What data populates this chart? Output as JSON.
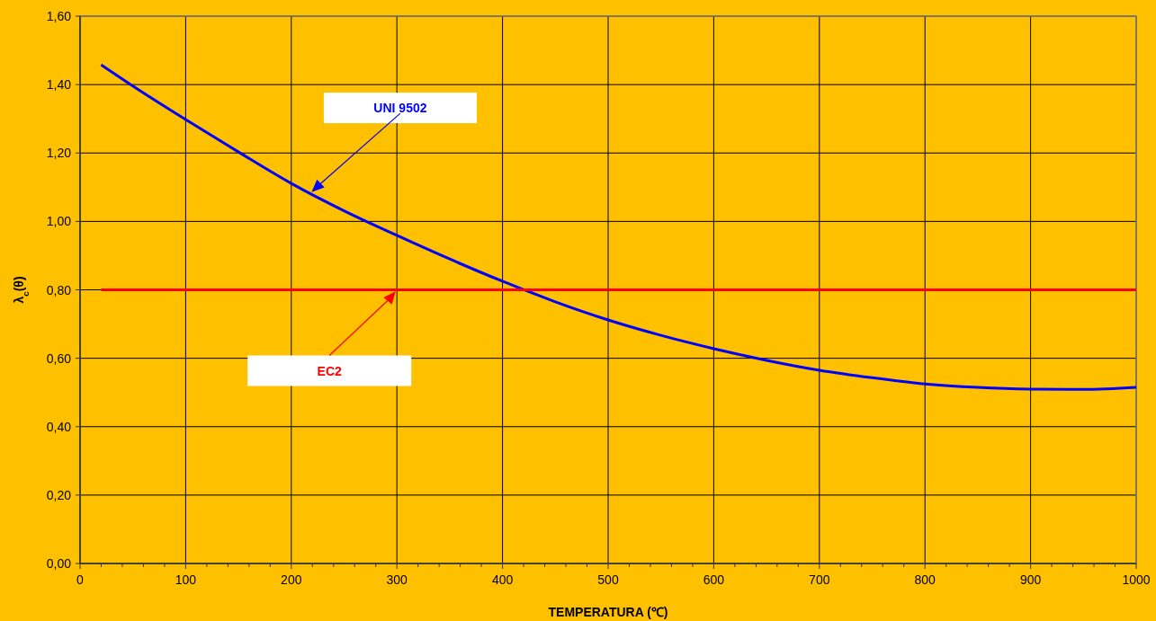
{
  "chart_data": {
    "type": "line",
    "xlabel": "TEMPERATURA (℃)",
    "ylabel": "λ$_{c}$(θ)",
    "xlim": [
      0,
      1000
    ],
    "xticks": [
      0,
      {
        "value": 20,
        "label": null
      },
      {
        "value": 40,
        "label": null
      },
      {
        "value": 60,
        "label": null
      },
      {
        "value": 80,
        "label": null
      },
      100,
      {
        "value": 120,
        "label": null
      },
      {
        "value": 140,
        "label": null
      },
      {
        "value": 160,
        "label": null
      },
      {
        "value": 180,
        "label": null
      },
      200,
      {
        "value": 220,
        "label": null
      },
      {
        "value": 240,
        "label": null
      },
      {
        "value": 260,
        "label": null
      },
      {
        "value": 280,
        "label": null
      },
      300,
      {
        "value": 320,
        "label": null
      },
      {
        "value": 340,
        "label": null
      },
      {
        "value": 360,
        "label": null
      },
      {
        "value": 380,
        "label": null
      },
      400,
      {
        "value": 420,
        "label": null
      },
      {
        "value": 440,
        "label": null
      },
      {
        "value": 460,
        "label": null
      },
      {
        "value": 480,
        "label": null
      },
      500,
      {
        "value": 520,
        "label": null
      },
      {
        "value": 540,
        "label": null
      },
      {
        "value": 560,
        "label": null
      },
      {
        "value": 580,
        "label": null
      },
      600,
      {
        "value": 620,
        "label": null
      },
      {
        "value": 640,
        "label": null
      },
      {
        "value": 660,
        "label": null
      },
      {
        "value": 680,
        "label": null
      },
      700,
      {
        "value": 720,
        "label": null
      },
      {
        "value": 740,
        "label": null
      },
      {
        "value": 760,
        "label": null
      },
      {
        "value": 780,
        "label": null
      },
      800,
      {
        "value": 820,
        "label": null
      },
      {
        "value": 840,
        "label": null
      },
      {
        "value": 860,
        "label": null
      },
      {
        "value": 880,
        "label": null
      },
      900,
      {
        "value": 920,
        "label": null
      },
      {
        "value": 940,
        "label": null
      },
      {
        "value": 960,
        "label": null
      },
      {
        "value": 980,
        "label": null
      },
      1000
    ],
    "ylim": [
      0,
      1.6
    ],
    "yticks": [
      {
        "value": 0,
        "label": "0,00"
      },
      {
        "value": 0.2,
        "label": "0,20"
      },
      {
        "value": 0.4,
        "label": "0,40"
      },
      {
        "value": 0.6,
        "label": "0,60"
      },
      {
        "value": 0.8,
        "label": "0,80"
      },
      {
        "value": 1.0,
        "label": "1,00"
      },
      {
        "value": 1.2,
        "label": "1,20"
      },
      {
        "value": 1.4,
        "label": "1,40"
      },
      {
        "value": 1.6,
        "label": "1,60"
      }
    ],
    "grid": true,
    "marker": "none",
    "line_style": "solid",
    "series": [
      {
        "name": "UNI 9502",
        "color": "#0000ff",
        "x": [
          20,
          50,
          100,
          150,
          200,
          250,
          300,
          350,
          400,
          450,
          500,
          550,
          600,
          650,
          700,
          750,
          800,
          850,
          900,
          950,
          1000
        ],
        "values": [
          1.458,
          1.396,
          1.298,
          1.203,
          1.111,
          1.031,
          0.959,
          0.89,
          0.825,
          0.765,
          0.712,
          0.667,
          0.628,
          0.594,
          0.565,
          0.543,
          0.525,
          0.515,
          0.51,
          0.509,
          0.515
        ]
      },
      {
        "name": "EC2",
        "color": "#ff0000",
        "x": [
          20,
          1000
        ],
        "values": [
          0.8,
          0.8
        ]
      }
    ]
  }
}
